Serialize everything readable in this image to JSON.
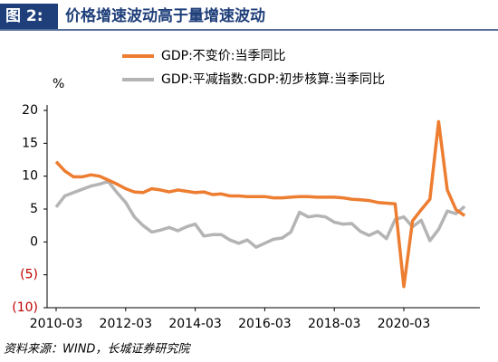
{
  "chart_data": {
    "type": "line",
    "figure_label": "图 2:",
    "title": "价格增速波动高于量增速波动",
    "y_label": "%",
    "source": "资料来源：WIND，长城证券研究院",
    "x": [
      "2010-03",
      "2010-06",
      "2010-09",
      "2010-12",
      "2011-03",
      "2011-06",
      "2011-09",
      "2011-12",
      "2012-03",
      "2012-06",
      "2012-09",
      "2012-12",
      "2013-03",
      "2013-06",
      "2013-09",
      "2013-12",
      "2014-03",
      "2014-06",
      "2014-09",
      "2014-12",
      "2015-03",
      "2015-06",
      "2015-09",
      "2015-12",
      "2016-03",
      "2016-06",
      "2016-09",
      "2016-12",
      "2017-03",
      "2017-06",
      "2017-09",
      "2017-12",
      "2018-03",
      "2018-06",
      "2018-09",
      "2018-12",
      "2019-03",
      "2019-06",
      "2019-09",
      "2019-12",
      "2020-03",
      "2020-06",
      "2020-09",
      "2020-12",
      "2021-03",
      "2021-06",
      "2021-09",
      "2021-12"
    ],
    "xticks": [
      "2010-03",
      "2012-03",
      "2014-03",
      "2016-03",
      "2018-03",
      "2020-03"
    ],
    "ylim": [
      -10,
      20
    ],
    "yticks": [
      {
        "value": -10,
        "label": "(10)"
      },
      {
        "value": -5,
        "label": "(5)"
      },
      0,
      5,
      10,
      15,
      20
    ],
    "negative_tick_color": "#c00000",
    "series": [
      {
        "name": "GDP:不变价:当季同比",
        "color": "#ed7d31",
        "values": [
          12.2,
          10.8,
          9.9,
          9.9,
          10.2,
          10.0,
          9.4,
          8.8,
          8.1,
          7.6,
          7.5,
          8.1,
          7.9,
          7.6,
          7.9,
          7.7,
          7.5,
          7.6,
          7.2,
          7.3,
          7.0,
          7.0,
          6.9,
          6.9,
          6.9,
          6.7,
          6.7,
          6.8,
          6.9,
          6.9,
          6.8,
          6.8,
          6.8,
          6.7,
          6.5,
          6.4,
          6.3,
          6.0,
          5.9,
          5.8,
          -6.8,
          3.2,
          4.9,
          6.5,
          18.3,
          7.9,
          4.9,
          4.0
        ]
      },
      {
        "name": "GDP:平减指数:GDP:初步核算:当季同比",
        "color": "#b4b4b4",
        "values": [
          5.3,
          7.0,
          7.5,
          8.0,
          8.5,
          8.8,
          9.2,
          7.5,
          6.0,
          3.8,
          2.5,
          1.5,
          1.8,
          2.2,
          1.7,
          2.3,
          2.7,
          0.9,
          1.1,
          1.1,
          0.3,
          -0.2,
          0.3,
          -0.8,
          -0.2,
          0.4,
          0.6,
          1.5,
          4.5,
          3.8,
          4.0,
          3.8,
          3.0,
          2.7,
          2.8,
          1.6,
          1.0,
          1.6,
          0.5,
          3.4,
          3.8,
          2.3,
          3.3,
          0.2,
          1.9,
          4.7,
          4.3,
          5.4
        ]
      }
    ]
  }
}
